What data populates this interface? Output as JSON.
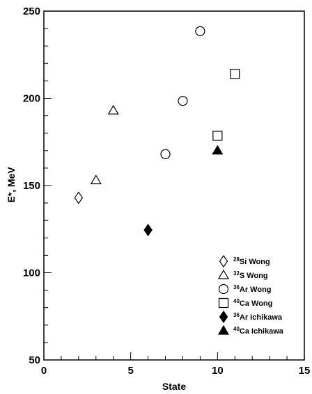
{
  "chart_data": {
    "type": "scatter",
    "title": "",
    "xlabel": "State",
    "ylabel": "E*, MeV",
    "xlim": [
      0,
      15
    ],
    "ylim": [
      50,
      250
    ],
    "x_ticks": [
      "0",
      "5",
      "10",
      "15"
    ],
    "y_ticks": [
      "50",
      "100",
      "150",
      "200",
      "250"
    ],
    "grid": false,
    "legend_position": "bottom-right",
    "series": [
      {
        "name_sup": "28",
        "name_rest": "Si Wong",
        "marker": "diamond-open",
        "points": [
          [
            2,
            143
          ]
        ]
      },
      {
        "name_sup": "32",
        "name_rest": "S Wong",
        "marker": "triangle-open",
        "points": [
          [
            3,
            153
          ],
          [
            4,
            193
          ]
        ]
      },
      {
        "name_sup": "36",
        "name_rest": "Ar Wong",
        "marker": "circle-open",
        "points": [
          [
            7,
            168
          ],
          [
            8,
            198.5
          ],
          [
            9,
            238.5
          ]
        ]
      },
      {
        "name_sup": "40",
        "name_rest": "Ca Wong",
        "marker": "square-open",
        "points": [
          [
            10,
            178.5
          ],
          [
            11,
            214
          ]
        ]
      },
      {
        "name_sup": "36",
        "name_rest": "Ar Ichikawa",
        "marker": "diamond-filled",
        "points": [
          [
            6,
            124.5
          ]
        ]
      },
      {
        "name_sup": "40",
        "name_rest": "Ca Ichikawa",
        "marker": "triangle-filled",
        "points": [
          [
            10,
            170
          ]
        ]
      }
    ]
  }
}
